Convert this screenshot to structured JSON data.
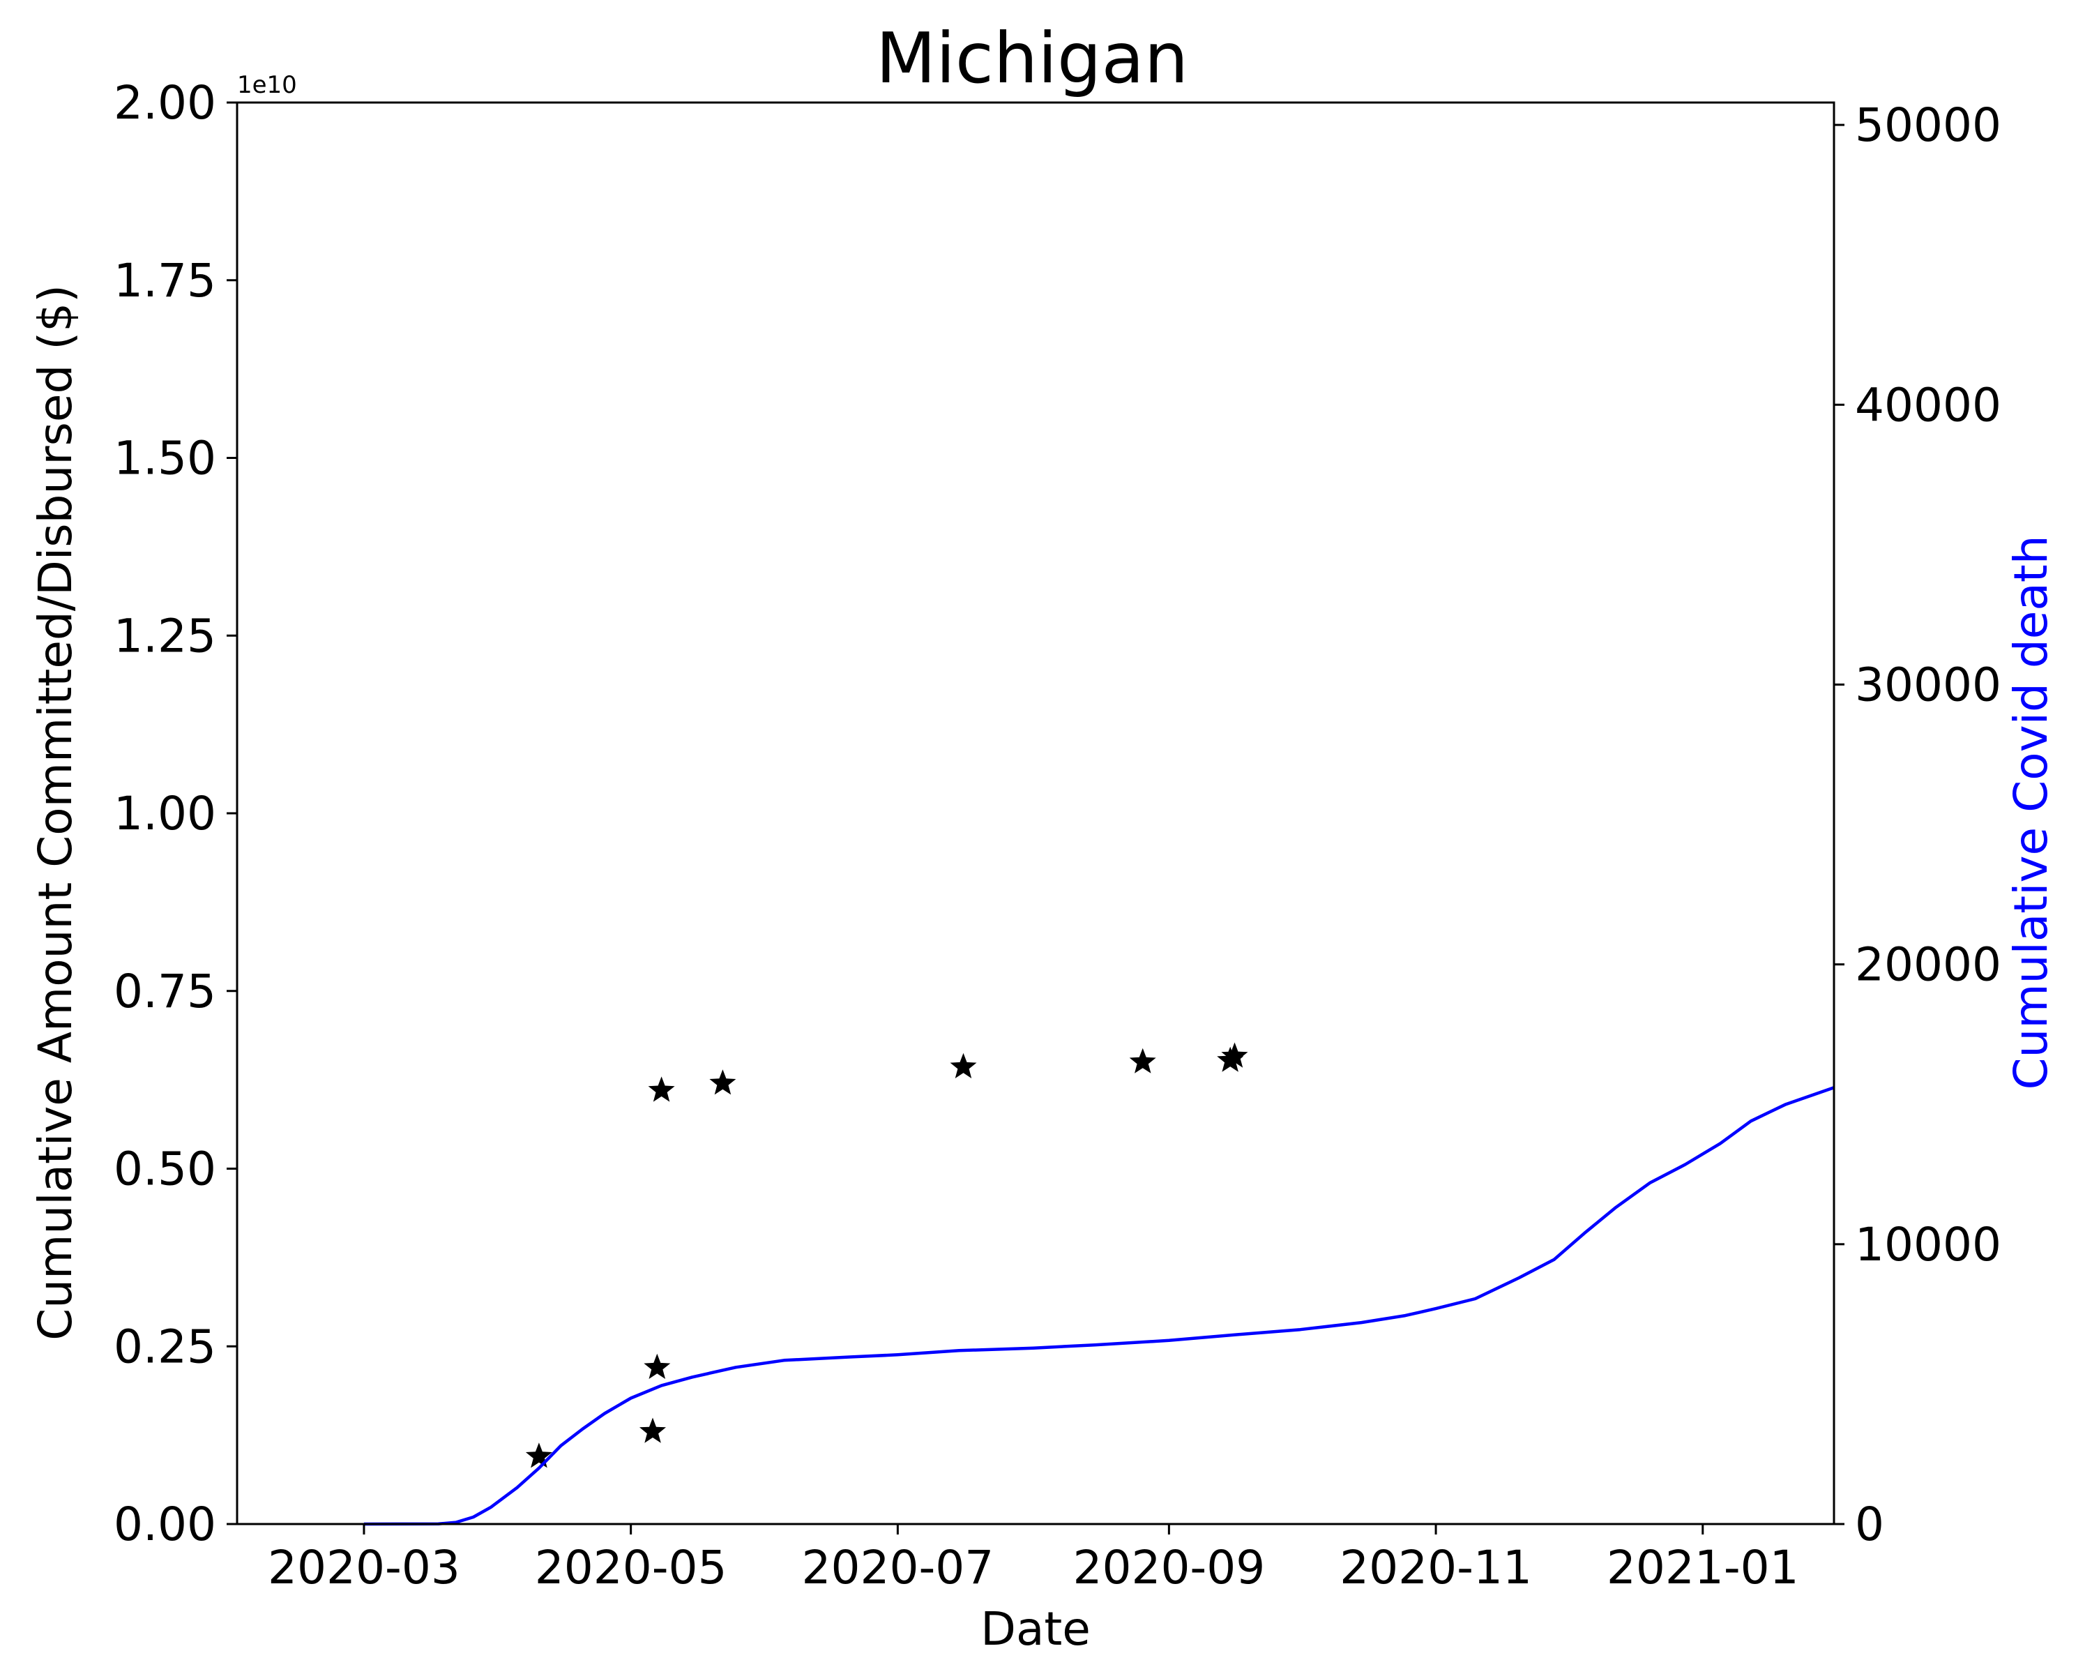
{
  "chart_data": {
    "type": "scatter",
    "title": "Michigan",
    "xlabel": "Date",
    "ylabel_left": "Cumulative Amount Committed/Disbursed ($)",
    "ylabel_right": "Cumulative Covid death",
    "left_axis_offset_label": "1e10",
    "xlim": [
      "2020-02-01",
      "2021-01-31"
    ],
    "ylim_left": [
      0,
      2.0
    ],
    "ylim_right": [
      0,
      50800
    ],
    "x_ticks": [
      "2020-03",
      "2020-05",
      "2020-07",
      "2020-09",
      "2020-11",
      "2021-01"
    ],
    "x_tick_dates": [
      "2020-03-01",
      "2020-05-01",
      "2020-07-01",
      "2020-09-01",
      "2020-11-01",
      "2021-01-01"
    ],
    "y_ticks_left": [
      "0.00",
      "0.25",
      "0.50",
      "0.75",
      "1.00",
      "1.25",
      "1.50",
      "1.75",
      "2.00"
    ],
    "y_ticks_right": [
      "0",
      "10000",
      "20000",
      "30000",
      "40000",
      "50000"
    ],
    "grid": false,
    "series": [
      {
        "axis": "left",
        "marker": "star",
        "color": "#000000",
        "points": [
          {
            "x": "2020-04-10",
            "y": 0.095
          },
          {
            "x": "2020-05-06",
            "y": 0.13
          },
          {
            "x": "2020-05-07",
            "y": 0.22
          },
          {
            "x": "2020-05-08",
            "y": 0.61
          },
          {
            "x": "2020-05-22",
            "y": 0.62
          },
          {
            "x": "2020-07-16",
            "y": 0.643
          },
          {
            "x": "2020-08-26",
            "y": 0.65
          },
          {
            "x": "2020-09-15",
            "y": 0.652
          },
          {
            "x": "2020-09-16",
            "y": 0.658
          }
        ]
      },
      {
        "axis": "right",
        "marker": "line",
        "color": "#0000ff",
        "points": [
          {
            "x": "2020-03-01",
            "y": 0
          },
          {
            "x": "2020-03-18",
            "y": 5
          },
          {
            "x": "2020-03-22",
            "y": 60
          },
          {
            "x": "2020-03-26",
            "y": 250
          },
          {
            "x": "2020-03-30",
            "y": 600
          },
          {
            "x": "2020-04-05",
            "y": 1300
          },
          {
            "x": "2020-04-10",
            "y": 2000
          },
          {
            "x": "2020-04-15",
            "y": 2800
          },
          {
            "x": "2020-04-20",
            "y": 3400
          },
          {
            "x": "2020-04-25",
            "y": 3950
          },
          {
            "x": "2020-05-01",
            "y": 4500
          },
          {
            "x": "2020-05-08",
            "y": 4950
          },
          {
            "x": "2020-05-15",
            "y": 5250
          },
          {
            "x": "2020-05-25",
            "y": 5600
          },
          {
            "x": "2020-06-05",
            "y": 5850
          },
          {
            "x": "2020-06-20",
            "y": 5970
          },
          {
            "x": "2020-07-01",
            "y": 6050
          },
          {
            "x": "2020-07-15",
            "y": 6200
          },
          {
            "x": "2020-08-01",
            "y": 6290
          },
          {
            "x": "2020-08-15",
            "y": 6400
          },
          {
            "x": "2020-09-01",
            "y": 6560
          },
          {
            "x": "2020-09-15",
            "y": 6750
          },
          {
            "x": "2020-10-01",
            "y": 6950
          },
          {
            "x": "2020-10-15",
            "y": 7200
          },
          {
            "x": "2020-10-25",
            "y": 7450
          },
          {
            "x": "2020-11-01",
            "y": 7700
          },
          {
            "x": "2020-11-10",
            "y": 8050
          },
          {
            "x": "2020-11-20",
            "y": 8800
          },
          {
            "x": "2020-11-28",
            "y": 9450
          },
          {
            "x": "2020-12-05",
            "y": 10400
          },
          {
            "x": "2020-12-12",
            "y": 11300
          },
          {
            "x": "2020-12-20",
            "y": 12200
          },
          {
            "x": "2020-12-28",
            "y": 12850
          },
          {
            "x": "2021-01-05",
            "y": 13600
          },
          {
            "x": "2021-01-12",
            "y": 14400
          },
          {
            "x": "2021-01-20",
            "y": 15000
          },
          {
            "x": "2021-01-31",
            "y": 15600
          }
        ]
      }
    ]
  }
}
